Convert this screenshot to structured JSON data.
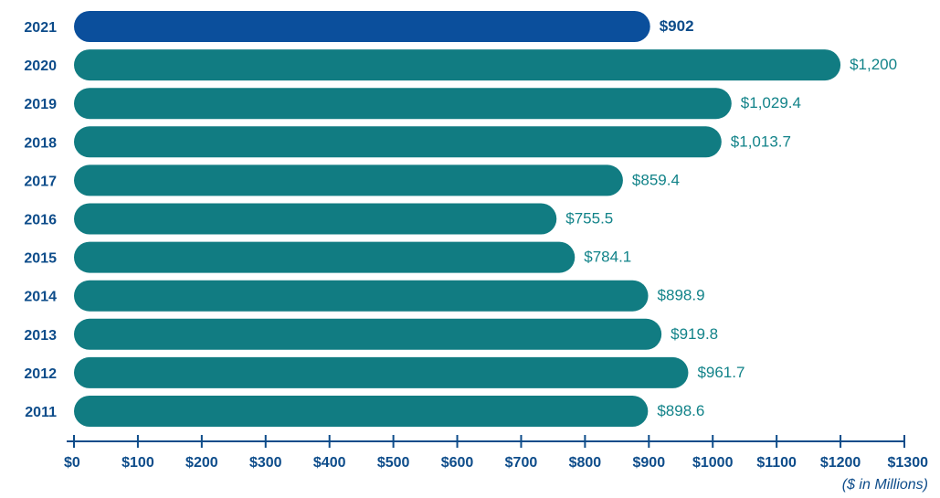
{
  "chart_data": {
    "type": "bar",
    "orientation": "horizontal",
    "categories": [
      "2021",
      "2020",
      "2019",
      "2018",
      "2017",
      "2016",
      "2015",
      "2014",
      "2013",
      "2012",
      "2011"
    ],
    "values": [
      902,
      1200,
      1029.4,
      1013.7,
      859.4,
      755.5,
      784.1,
      898.9,
      919.8,
      961.7,
      898.6
    ],
    "value_labels": [
      "$902",
      "$1,200",
      "$1,029.4",
      "$1,013.7",
      "$859.4",
      "$755.5",
      "$784.1",
      "$898.9",
      "$919.8",
      "$961.7",
      "$898.6"
    ],
    "highlight_index": 0,
    "x_ticks": [
      "$0",
      "$100",
      "$200",
      "$300",
      "$400",
      "$500",
      "$600",
      "$700",
      "$800",
      "$900",
      "$1000",
      "$1100",
      "$1200",
      "$1300"
    ],
    "xlim": [
      0,
      1300
    ],
    "x_unit_label": "($ in Millions)",
    "title": "",
    "xlabel": "",
    "ylabel": "",
    "grid": false,
    "colors": {
      "bar": "#117c82",
      "highlight": "#0b4f9c",
      "axis": "#0d4c8a",
      "value_text": "#128389"
    }
  }
}
